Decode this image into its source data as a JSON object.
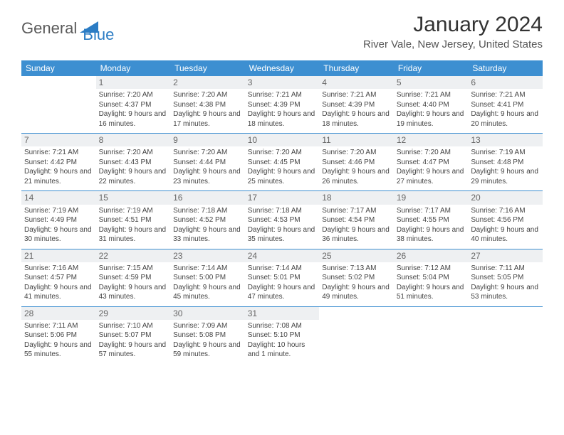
{
  "brand": {
    "part1": "General",
    "part2": "Blue"
  },
  "title": "January 2024",
  "location": "River Vale, New Jersey, United States",
  "colors": {
    "header_bg": "#3d8fd1",
    "header_text": "#ffffff",
    "daynum_bg": "#eef0f2",
    "body_text": "#444444",
    "title_text": "#333333",
    "brand_gray": "#5a5a5a",
    "brand_blue": "#2b7cc4"
  },
  "day_labels": [
    "Sunday",
    "Monday",
    "Tuesday",
    "Wednesday",
    "Thursday",
    "Friday",
    "Saturday"
  ],
  "weeks": [
    [
      {
        "n": "",
        "info": ""
      },
      {
        "n": "1",
        "info": "Sunrise: 7:20 AM\nSunset: 4:37 PM\nDaylight: 9 hours and 16 minutes."
      },
      {
        "n": "2",
        "info": "Sunrise: 7:20 AM\nSunset: 4:38 PM\nDaylight: 9 hours and 17 minutes."
      },
      {
        "n": "3",
        "info": "Sunrise: 7:21 AM\nSunset: 4:39 PM\nDaylight: 9 hours and 18 minutes."
      },
      {
        "n": "4",
        "info": "Sunrise: 7:21 AM\nSunset: 4:39 PM\nDaylight: 9 hours and 18 minutes."
      },
      {
        "n": "5",
        "info": "Sunrise: 7:21 AM\nSunset: 4:40 PM\nDaylight: 9 hours and 19 minutes."
      },
      {
        "n": "6",
        "info": "Sunrise: 7:21 AM\nSunset: 4:41 PM\nDaylight: 9 hours and 20 minutes."
      }
    ],
    [
      {
        "n": "7",
        "info": "Sunrise: 7:21 AM\nSunset: 4:42 PM\nDaylight: 9 hours and 21 minutes."
      },
      {
        "n": "8",
        "info": "Sunrise: 7:20 AM\nSunset: 4:43 PM\nDaylight: 9 hours and 22 minutes."
      },
      {
        "n": "9",
        "info": "Sunrise: 7:20 AM\nSunset: 4:44 PM\nDaylight: 9 hours and 23 minutes."
      },
      {
        "n": "10",
        "info": "Sunrise: 7:20 AM\nSunset: 4:45 PM\nDaylight: 9 hours and 25 minutes."
      },
      {
        "n": "11",
        "info": "Sunrise: 7:20 AM\nSunset: 4:46 PM\nDaylight: 9 hours and 26 minutes."
      },
      {
        "n": "12",
        "info": "Sunrise: 7:20 AM\nSunset: 4:47 PM\nDaylight: 9 hours and 27 minutes."
      },
      {
        "n": "13",
        "info": "Sunrise: 7:19 AM\nSunset: 4:48 PM\nDaylight: 9 hours and 29 minutes."
      }
    ],
    [
      {
        "n": "14",
        "info": "Sunrise: 7:19 AM\nSunset: 4:49 PM\nDaylight: 9 hours and 30 minutes."
      },
      {
        "n": "15",
        "info": "Sunrise: 7:19 AM\nSunset: 4:51 PM\nDaylight: 9 hours and 31 minutes."
      },
      {
        "n": "16",
        "info": "Sunrise: 7:18 AM\nSunset: 4:52 PM\nDaylight: 9 hours and 33 minutes."
      },
      {
        "n": "17",
        "info": "Sunrise: 7:18 AM\nSunset: 4:53 PM\nDaylight: 9 hours and 35 minutes."
      },
      {
        "n": "18",
        "info": "Sunrise: 7:17 AM\nSunset: 4:54 PM\nDaylight: 9 hours and 36 minutes."
      },
      {
        "n": "19",
        "info": "Sunrise: 7:17 AM\nSunset: 4:55 PM\nDaylight: 9 hours and 38 minutes."
      },
      {
        "n": "20",
        "info": "Sunrise: 7:16 AM\nSunset: 4:56 PM\nDaylight: 9 hours and 40 minutes."
      }
    ],
    [
      {
        "n": "21",
        "info": "Sunrise: 7:16 AM\nSunset: 4:57 PM\nDaylight: 9 hours and 41 minutes."
      },
      {
        "n": "22",
        "info": "Sunrise: 7:15 AM\nSunset: 4:59 PM\nDaylight: 9 hours and 43 minutes."
      },
      {
        "n": "23",
        "info": "Sunrise: 7:14 AM\nSunset: 5:00 PM\nDaylight: 9 hours and 45 minutes."
      },
      {
        "n": "24",
        "info": "Sunrise: 7:14 AM\nSunset: 5:01 PM\nDaylight: 9 hours and 47 minutes."
      },
      {
        "n": "25",
        "info": "Sunrise: 7:13 AM\nSunset: 5:02 PM\nDaylight: 9 hours and 49 minutes."
      },
      {
        "n": "26",
        "info": "Sunrise: 7:12 AM\nSunset: 5:04 PM\nDaylight: 9 hours and 51 minutes."
      },
      {
        "n": "27",
        "info": "Sunrise: 7:11 AM\nSunset: 5:05 PM\nDaylight: 9 hours and 53 minutes."
      }
    ],
    [
      {
        "n": "28",
        "info": "Sunrise: 7:11 AM\nSunset: 5:06 PM\nDaylight: 9 hours and 55 minutes."
      },
      {
        "n": "29",
        "info": "Sunrise: 7:10 AM\nSunset: 5:07 PM\nDaylight: 9 hours and 57 minutes."
      },
      {
        "n": "30",
        "info": "Sunrise: 7:09 AM\nSunset: 5:08 PM\nDaylight: 9 hours and 59 minutes."
      },
      {
        "n": "31",
        "info": "Sunrise: 7:08 AM\nSunset: 5:10 PM\nDaylight: 10 hours and 1 minute."
      },
      {
        "n": "",
        "info": ""
      },
      {
        "n": "",
        "info": ""
      },
      {
        "n": "",
        "info": ""
      }
    ]
  ]
}
